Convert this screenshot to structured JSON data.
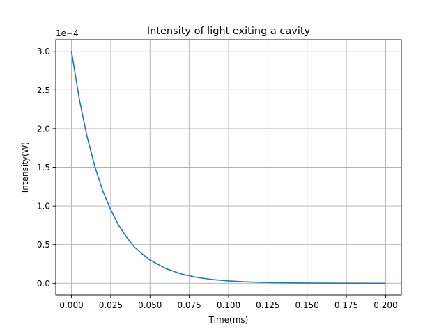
{
  "chart_data": {
    "type": "line",
    "title": "Intensity of light exiting a cavity",
    "xlabel": "Time(ms)",
    "ylabel": "Intensity(W)",
    "y_offset_label": "1e−4",
    "y_scale_factor": 0.0001,
    "xlim": [
      -0.01,
      0.21
    ],
    "ylim": [
      -0.15,
      3.15
    ],
    "grid": true,
    "x_ticks": [
      0.0,
      0.025,
      0.05,
      0.075,
      0.1,
      0.125,
      0.15,
      0.175,
      0.2
    ],
    "x_tick_labels": [
      "0.000",
      "0.025",
      "0.050",
      "0.075",
      "0.100",
      "0.125",
      "0.150",
      "0.175",
      "0.200"
    ],
    "y_ticks": [
      0.0,
      0.5,
      1.0,
      1.5,
      2.0,
      2.5,
      3.0
    ],
    "y_tick_labels": [
      "0.0",
      "0.5",
      "1.0",
      "1.5",
      "2.0",
      "2.5",
      "3.0"
    ],
    "series": [
      {
        "color": "#1f77b4",
        "x": [
          0.0,
          0.005,
          0.01,
          0.015,
          0.02,
          0.025,
          0.03,
          0.035,
          0.04,
          0.045,
          0.05,
          0.06,
          0.07,
          0.08,
          0.09,
          0.1,
          0.11,
          0.12,
          0.13,
          0.14,
          0.15,
          0.16,
          0.17,
          0.18,
          0.19,
          0.2
        ],
        "y": [
          3.0,
          2.38,
          1.89,
          1.5,
          1.19,
          0.95,
          0.75,
          0.6,
          0.47,
          0.38,
          0.3,
          0.19,
          0.12,
          0.075,
          0.047,
          0.03,
          0.019,
          0.012,
          0.0075,
          0.0047,
          0.003,
          0.0019,
          0.0012,
          0.0008,
          0.0005,
          0.0003
        ]
      }
    ]
  }
}
